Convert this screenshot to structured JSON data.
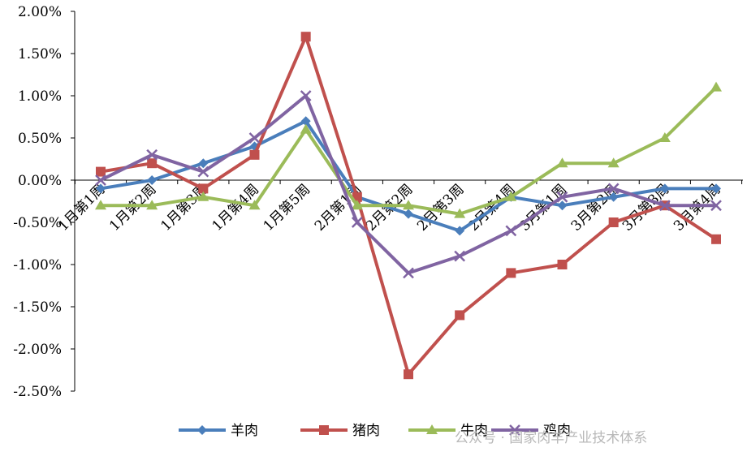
{
  "chart_data": {
    "type": "line",
    "title": "",
    "xlabel": "",
    "ylabel": "",
    "categories": [
      "1月第1周",
      "1月第2周",
      "1月第3周",
      "1月第4周",
      "1月第5周",
      "2月第1周",
      "2月第2周",
      "2月第3周",
      "2月第4周",
      "3月第1周",
      "3月第2周",
      "3月第3周",
      "3月第4周"
    ],
    "ylim": [
      -2.5,
      2.0
    ],
    "y_ticks": [
      2.0,
      1.5,
      1.0,
      0.5,
      0.0,
      -0.5,
      -1.0,
      -1.5,
      -2.0,
      -2.5
    ],
    "y_tick_labels": [
      "2.00%",
      "1.50%",
      "1.00%",
      "0.50%",
      "0.00%",
      "-0.50%",
      "-1.00%",
      "-1.50%",
      "-2.00%",
      "-2.50%"
    ],
    "unit": "%",
    "grid": false,
    "legend_position": "bottom",
    "series": [
      {
        "name": "羊肉",
        "color": "#4a7ebb",
        "marker": "diamond",
        "values": [
          -0.1,
          0.0,
          0.2,
          0.4,
          0.7,
          -0.2,
          -0.4,
          -0.6,
          -0.2,
          -0.3,
          -0.2,
          -0.1,
          -0.1
        ]
      },
      {
        "name": "猪肉",
        "color": "#c0504d",
        "marker": "square",
        "values": [
          0.1,
          0.2,
          -0.1,
          0.3,
          1.7,
          -0.2,
          -2.3,
          -1.6,
          -1.1,
          -1.0,
          -0.5,
          -0.3,
          -0.7
        ]
      },
      {
        "name": "牛肉",
        "color": "#9bbb59",
        "marker": "triangle",
        "values": [
          -0.3,
          -0.3,
          -0.2,
          -0.3,
          0.6,
          -0.3,
          -0.3,
          -0.4,
          -0.2,
          0.2,
          0.2,
          0.5,
          1.1
        ]
      },
      {
        "name": "鸡肉",
        "color": "#8064a2",
        "marker": "x",
        "values": [
          0.0,
          0.3,
          0.1,
          0.5,
          1.0,
          -0.5,
          -1.1,
          -0.9,
          -0.6,
          -0.2,
          -0.1,
          -0.3,
          -0.3
        ]
      }
    ]
  },
  "watermark": "公众号 · 国家肉羊产业技术体系"
}
